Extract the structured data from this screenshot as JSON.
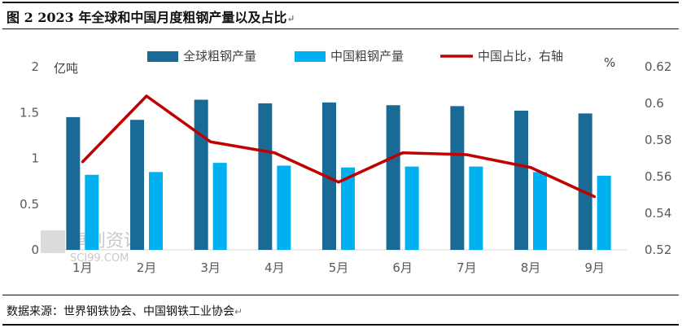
{
  "figure": {
    "title": "图 2 2023 年全球和中国月度粗钢产量以及占比",
    "source": "数据来源：世界钢铁协会、中国钢铁工业协会",
    "return_mark": "↵"
  },
  "watermark": {
    "text": "卓创资讯",
    "sub": "SCI99.COM"
  },
  "colors": {
    "global": "#1A6A96",
    "china": "#00B0F0",
    "share": "#C00000"
  },
  "chart_data": {
    "type": "bar",
    "categories": [
      "1月",
      "2月",
      "3月",
      "4月",
      "5月",
      "6月",
      "7月",
      "8月",
      "9月"
    ],
    "series": [
      {
        "name": "全球粗钢产量",
        "kind": "bar",
        "axis": "left",
        "values": [
          1.45,
          1.42,
          1.64,
          1.6,
          1.61,
          1.58,
          1.57,
          1.52,
          1.49
        ]
      },
      {
        "name": "中国粗钢产量",
        "kind": "bar",
        "axis": "left",
        "values": [
          0.82,
          0.85,
          0.95,
          0.92,
          0.9,
          0.91,
          0.91,
          0.85,
          0.81
        ]
      },
      {
        "name": "中国占比，右轴",
        "kind": "line",
        "axis": "right",
        "values": [
          0.568,
          0.604,
          0.579,
          0.573,
          0.557,
          0.573,
          0.572,
          0.565,
          0.549
        ]
      }
    ],
    "y_left": {
      "label": "亿吨",
      "range": [
        0,
        2
      ],
      "ticks": [
        "0",
        "0.5",
        "1",
        "1.5",
        "2"
      ]
    },
    "y_right": {
      "label": "%",
      "range": [
        0.52,
        0.62
      ],
      "ticks": [
        "0.52",
        "0.54",
        "0.56",
        "0.58",
        "0.6",
        "0.62"
      ]
    },
    "legend_position": "top",
    "grid": false
  }
}
